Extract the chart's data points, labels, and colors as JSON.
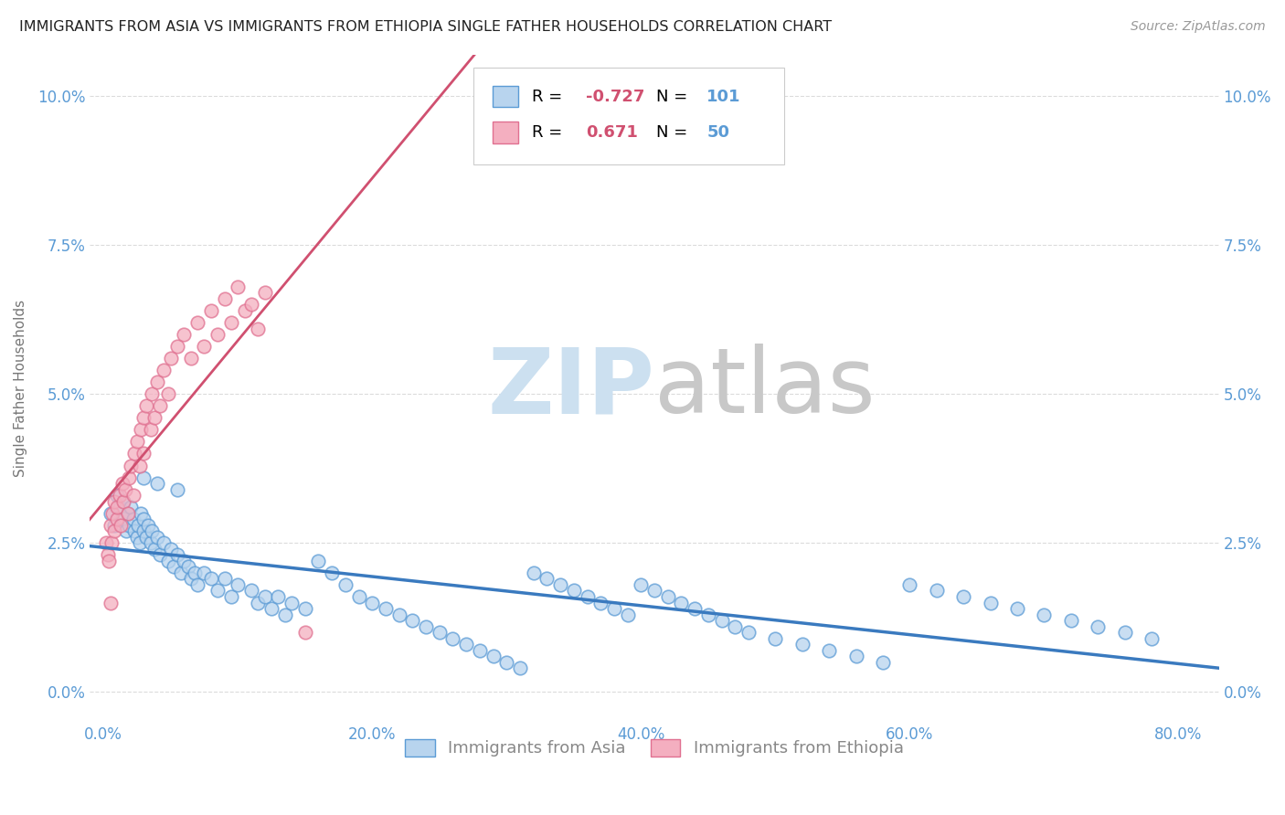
{
  "title": "IMMIGRANTS FROM ASIA VS IMMIGRANTS FROM ETHIOPIA SINGLE FATHER HOUSEHOLDS CORRELATION CHART",
  "source": "Source: ZipAtlas.com",
  "xlim": [
    -0.01,
    0.83
  ],
  "ylim": [
    -0.005,
    0.107
  ],
  "xtick_vals": [
    0.0,
    0.2,
    0.4,
    0.6,
    0.8
  ],
  "xtick_labels": [
    "0.0%",
    "20.0%",
    "40.0%",
    "60.0%",
    "80.0%"
  ],
  "ytick_vals": [
    0.0,
    0.025,
    0.05,
    0.075,
    0.1
  ],
  "ytick_labels": [
    "0.0%",
    "2.5%",
    "5.0%",
    "7.5%",
    "10.0%"
  ],
  "legend_asia_r": "-0.727",
  "legend_asia_n": "101",
  "legend_eth_r": "0.671",
  "legend_eth_n": "50",
  "asia_fill_color": "#b8d4ee",
  "asia_edge_color": "#5b9bd5",
  "eth_fill_color": "#f4afc0",
  "eth_edge_color": "#e07090",
  "asia_line_color": "#3a7abf",
  "eth_line_color": "#d05070",
  "watermark_zip_color": "#cce0f0",
  "watermark_atlas_color": "#c8c8c8",
  "background_color": "#ffffff",
  "grid_color": "#cccccc",
  "title_color": "#222222",
  "tick_color": "#5b9bd5",
  "ylabel": "Single Father Households",
  "legend_r_color": "#d05070",
  "legend_n_color": "#5b9bd5",
  "legend_label_color": "#888888",
  "asia_x": [
    0.005,
    0.008,
    0.01,
    0.012,
    0.015,
    0.015,
    0.017,
    0.018,
    0.019,
    0.02,
    0.022,
    0.023,
    0.025,
    0.026,
    0.027,
    0.028,
    0.03,
    0.03,
    0.032,
    0.033,
    0.035,
    0.036,
    0.038,
    0.04,
    0.042,
    0.045,
    0.048,
    0.05,
    0.052,
    0.055,
    0.058,
    0.06,
    0.063,
    0.065,
    0.068,
    0.07,
    0.075,
    0.08,
    0.085,
    0.09,
    0.095,
    0.1,
    0.11,
    0.115,
    0.12,
    0.125,
    0.13,
    0.135,
    0.14,
    0.15,
    0.16,
    0.17,
    0.18,
    0.19,
    0.2,
    0.21,
    0.22,
    0.23,
    0.24,
    0.25,
    0.26,
    0.27,
    0.28,
    0.29,
    0.3,
    0.31,
    0.32,
    0.33,
    0.34,
    0.35,
    0.36,
    0.37,
    0.38,
    0.39,
    0.4,
    0.41,
    0.42,
    0.43,
    0.44,
    0.45,
    0.46,
    0.47,
    0.48,
    0.5,
    0.52,
    0.54,
    0.56,
    0.58,
    0.6,
    0.62,
    0.64,
    0.66,
    0.68,
    0.7,
    0.72,
    0.74,
    0.76,
    0.78,
    0.03,
    0.04,
    0.055
  ],
  "asia_y": [
    0.03,
    0.028,
    0.033,
    0.031,
    0.029,
    0.032,
    0.027,
    0.03,
    0.028,
    0.031,
    0.029,
    0.027,
    0.026,
    0.028,
    0.025,
    0.03,
    0.027,
    0.029,
    0.026,
    0.028,
    0.025,
    0.027,
    0.024,
    0.026,
    0.023,
    0.025,
    0.022,
    0.024,
    0.021,
    0.023,
    0.02,
    0.022,
    0.021,
    0.019,
    0.02,
    0.018,
    0.02,
    0.019,
    0.017,
    0.019,
    0.016,
    0.018,
    0.017,
    0.015,
    0.016,
    0.014,
    0.016,
    0.013,
    0.015,
    0.014,
    0.022,
    0.02,
    0.018,
    0.016,
    0.015,
    0.014,
    0.013,
    0.012,
    0.011,
    0.01,
    0.009,
    0.008,
    0.007,
    0.006,
    0.005,
    0.004,
    0.02,
    0.019,
    0.018,
    0.017,
    0.016,
    0.015,
    0.014,
    0.013,
    0.018,
    0.017,
    0.016,
    0.015,
    0.014,
    0.013,
    0.012,
    0.011,
    0.01,
    0.009,
    0.008,
    0.007,
    0.006,
    0.005,
    0.018,
    0.017,
    0.016,
    0.015,
    0.014,
    0.013,
    0.012,
    0.011,
    0.01,
    0.009,
    0.036,
    0.035,
    0.034
  ],
  "eth_x": [
    0.002,
    0.003,
    0.004,
    0.005,
    0.006,
    0.007,
    0.008,
    0.008,
    0.01,
    0.01,
    0.012,
    0.013,
    0.014,
    0.015,
    0.016,
    0.018,
    0.019,
    0.02,
    0.022,
    0.023,
    0.025,
    0.027,
    0.028,
    0.03,
    0.03,
    0.032,
    0.035,
    0.036,
    0.038,
    0.04,
    0.042,
    0.045,
    0.048,
    0.05,
    0.055,
    0.06,
    0.065,
    0.07,
    0.075,
    0.08,
    0.085,
    0.09,
    0.095,
    0.1,
    0.105,
    0.11,
    0.115,
    0.12,
    0.005,
    0.15
  ],
  "eth_y": [
    0.025,
    0.023,
    0.022,
    0.028,
    0.025,
    0.03,
    0.027,
    0.032,
    0.029,
    0.031,
    0.033,
    0.028,
    0.035,
    0.032,
    0.034,
    0.03,
    0.036,
    0.038,
    0.033,
    0.04,
    0.042,
    0.038,
    0.044,
    0.04,
    0.046,
    0.048,
    0.044,
    0.05,
    0.046,
    0.052,
    0.048,
    0.054,
    0.05,
    0.056,
    0.058,
    0.06,
    0.056,
    0.062,
    0.058,
    0.064,
    0.06,
    0.066,
    0.062,
    0.068,
    0.064,
    0.065,
    0.061,
    0.067,
    0.015,
    0.01
  ]
}
